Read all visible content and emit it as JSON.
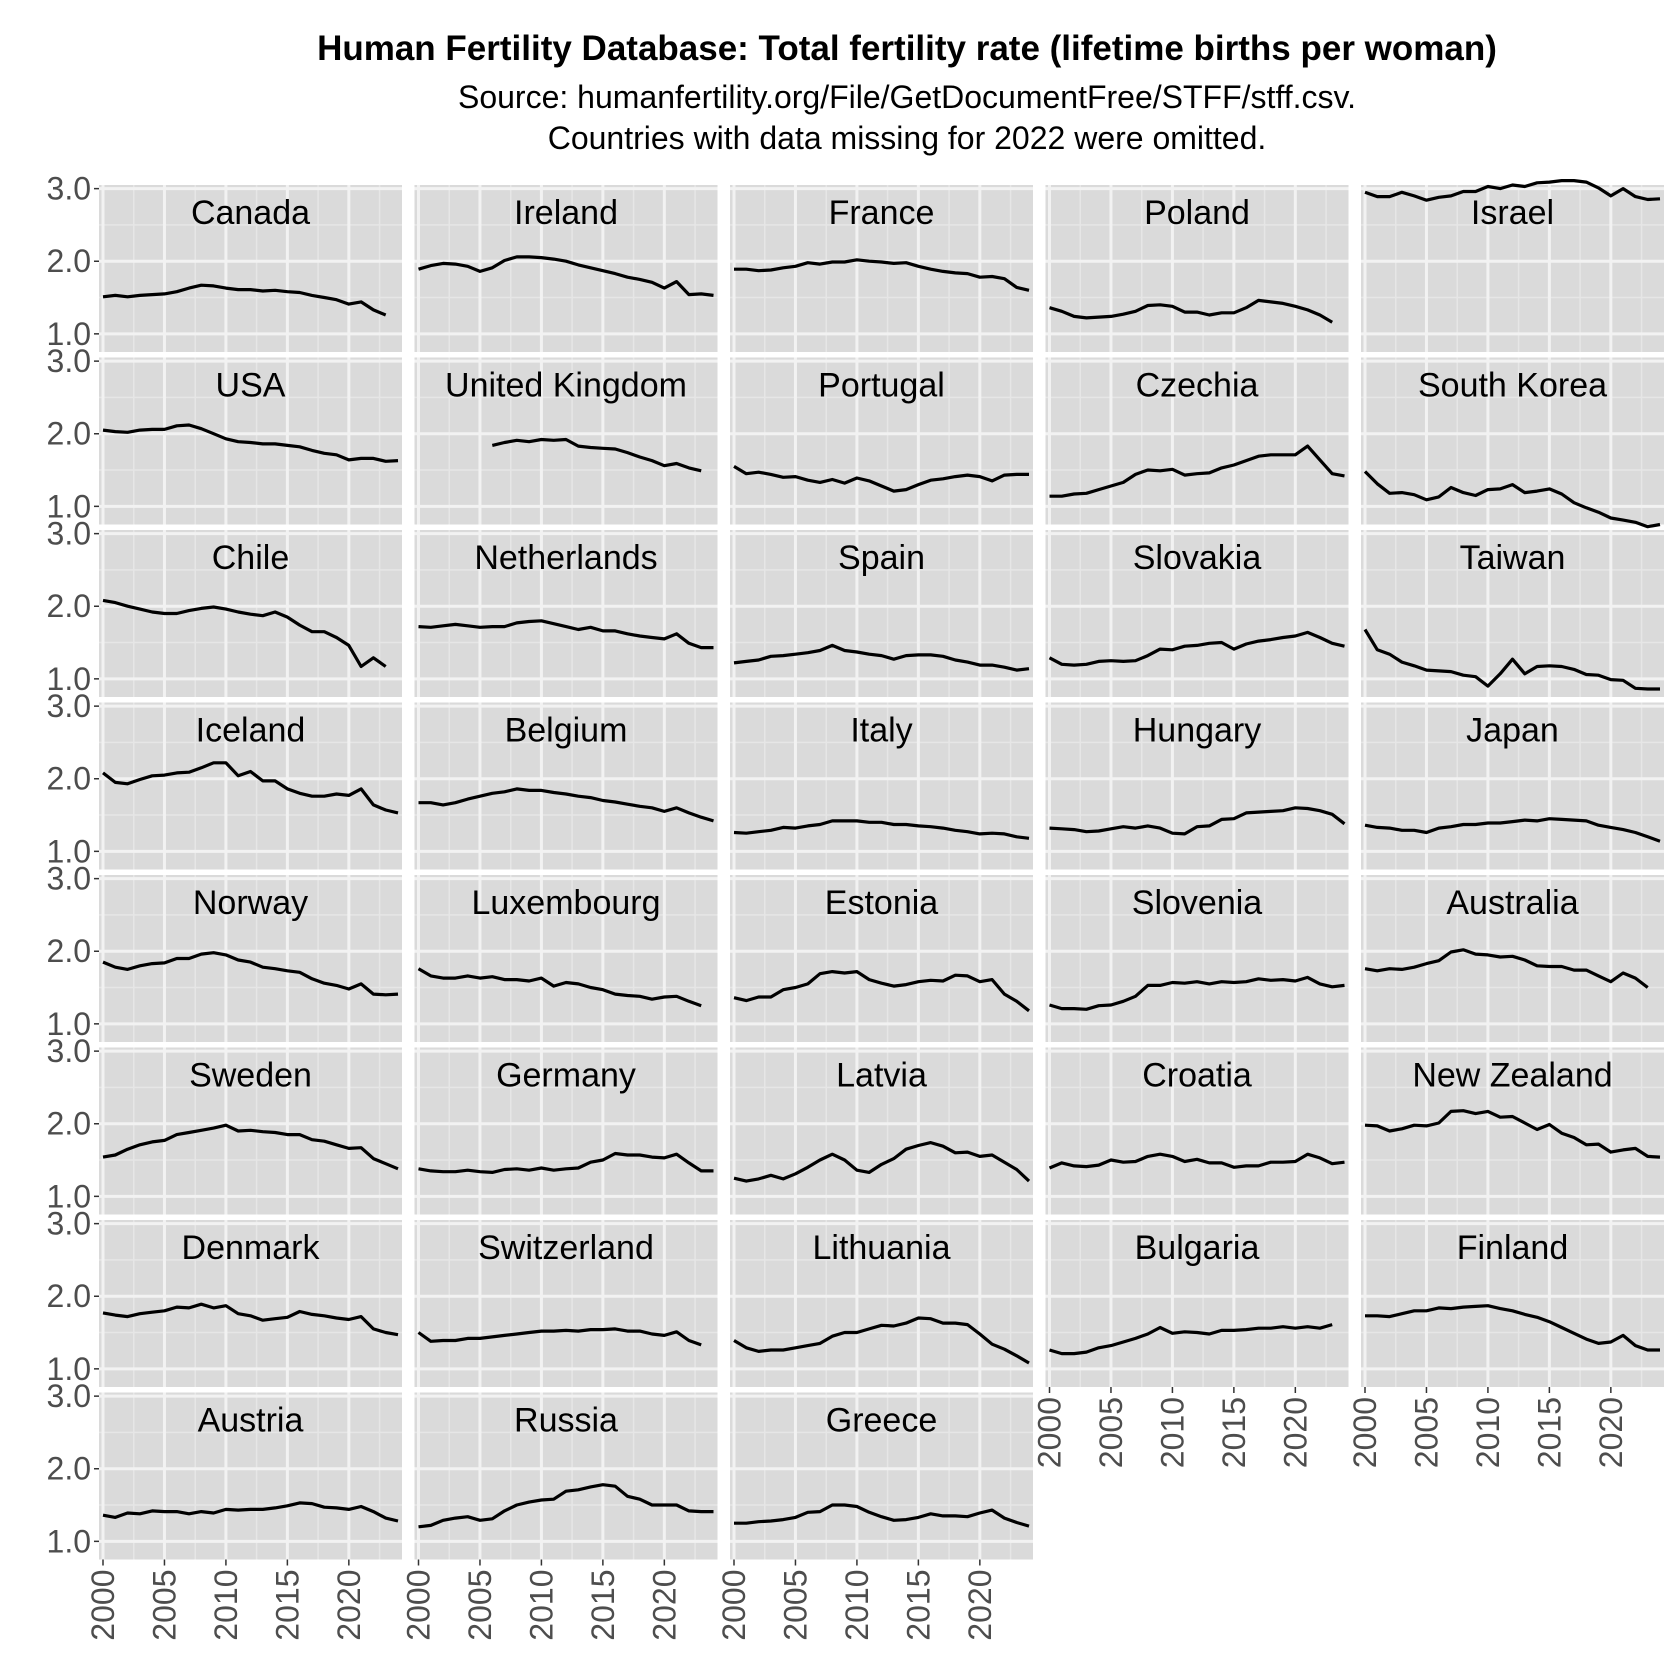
{
  "chart_data": {
    "type": "line",
    "title": "Human Fertility Database: Total fertility rate (lifetime births per woman)",
    "subtitle_lines": [
      "Source: humanfertility.org/File/GetDocumentFree/STFF/stff.csv.",
      "Countries with data missing for 2022 were omitted."
    ],
    "xlabel": "",
    "ylabel": "",
    "xlim": [
      2000,
      2024
    ],
    "ylim": [
      0.75,
      3.05
    ],
    "x_ticks": [
      2000,
      2005,
      2010,
      2015,
      2020
    ],
    "y_ticks": [
      1.0,
      2.0,
      3.0
    ],
    "y_tick_labels": [
      "1.0",
      "2.0",
      "3.0"
    ],
    "grid": true,
    "layout": "facet grid, 5 columns, free-standing panels",
    "line_color": "#000000",
    "panels": [
      {
        "country": "Canada",
        "x0": 2000,
        "values": [
          1.51,
          1.53,
          1.51,
          1.53,
          1.54,
          1.55,
          1.58,
          1.63,
          1.67,
          1.66,
          1.63,
          1.61,
          1.61,
          1.59,
          1.6,
          1.58,
          1.57,
          1.53,
          1.5,
          1.47,
          1.41,
          1.44,
          1.33,
          1.26
        ]
      },
      {
        "country": "Ireland",
        "x0": 2000,
        "values": [
          1.89,
          1.94,
          1.97,
          1.96,
          1.93,
          1.86,
          1.91,
          2.01,
          2.06,
          2.06,
          2.05,
          2.03,
          2.0,
          1.95,
          1.91,
          1.87,
          1.83,
          1.78,
          1.75,
          1.71,
          1.63,
          1.72,
          1.54,
          1.55,
          1.53
        ]
      },
      {
        "country": "France",
        "x0": 2000,
        "values": [
          1.89,
          1.89,
          1.87,
          1.88,
          1.91,
          1.93,
          1.98,
          1.96,
          1.99,
          1.99,
          2.02,
          2.0,
          1.99,
          1.97,
          1.98,
          1.93,
          1.89,
          1.86,
          1.84,
          1.83,
          1.78,
          1.79,
          1.76,
          1.64,
          1.6
        ]
      },
      {
        "country": "Poland",
        "x0": 2000,
        "values": [
          1.36,
          1.31,
          1.24,
          1.22,
          1.23,
          1.24,
          1.27,
          1.31,
          1.39,
          1.4,
          1.38,
          1.3,
          1.3,
          1.26,
          1.29,
          1.29,
          1.36,
          1.46,
          1.44,
          1.42,
          1.38,
          1.33,
          1.26,
          1.16
        ]
      },
      {
        "country": "Israel",
        "x0": 2000,
        "values": [
          2.95,
          2.89,
          2.89,
          2.95,
          2.9,
          2.84,
          2.88,
          2.9,
          2.96,
          2.96,
          3.03,
          3.0,
          3.05,
          3.03,
          3.08,
          3.09,
          3.11,
          3.11,
          3.09,
          3.01,
          2.9,
          3.0,
          2.89,
          2.85,
          2.86
        ]
      },
      {
        "country": "USA",
        "x0": 2000,
        "values": [
          2.05,
          2.03,
          2.02,
          2.05,
          2.06,
          2.06,
          2.11,
          2.12,
          2.07,
          2.0,
          1.93,
          1.89,
          1.88,
          1.86,
          1.86,
          1.84,
          1.82,
          1.77,
          1.73,
          1.71,
          1.64,
          1.66,
          1.66,
          1.62,
          1.63
        ]
      },
      {
        "country": "United Kingdom",
        "x0": 2000,
        "values": [
          null,
          null,
          null,
          null,
          null,
          null,
          1.84,
          1.88,
          1.91,
          1.89,
          1.92,
          1.91,
          1.92,
          1.83,
          1.81,
          1.8,
          1.79,
          1.74,
          1.68,
          1.63,
          1.56,
          1.59,
          1.53,
          1.49
        ]
      },
      {
        "country": "Portugal",
        "x0": 2000,
        "values": [
          1.55,
          1.45,
          1.47,
          1.44,
          1.4,
          1.41,
          1.36,
          1.33,
          1.37,
          1.32,
          1.39,
          1.35,
          1.28,
          1.21,
          1.23,
          1.3,
          1.36,
          1.38,
          1.41,
          1.43,
          1.41,
          1.35,
          1.43,
          1.44,
          1.44
        ]
      },
      {
        "country": "Czechia",
        "x0": 2000,
        "values": [
          1.14,
          1.14,
          1.17,
          1.18,
          1.23,
          1.28,
          1.33,
          1.44,
          1.5,
          1.49,
          1.51,
          1.43,
          1.45,
          1.46,
          1.53,
          1.57,
          1.63,
          1.69,
          1.71,
          1.71,
          1.71,
          1.83,
          1.64,
          1.45,
          1.42
        ]
      },
      {
        "country": "South Korea",
        "x0": 2000,
        "values": [
          1.48,
          1.31,
          1.18,
          1.19,
          1.16,
          1.09,
          1.13,
          1.26,
          1.19,
          1.15,
          1.23,
          1.24,
          1.3,
          1.19,
          1.21,
          1.24,
          1.17,
          1.05,
          0.98,
          0.92,
          0.84,
          0.81,
          0.78,
          0.72,
          0.75
        ]
      },
      {
        "country": "Chile",
        "x0": 2000,
        "values": [
          2.08,
          2.05,
          2.0,
          1.96,
          1.92,
          1.9,
          1.9,
          1.94,
          1.97,
          1.99,
          1.96,
          1.92,
          1.89,
          1.87,
          1.92,
          1.85,
          1.74,
          1.65,
          1.65,
          1.57,
          1.46,
          1.17,
          1.29,
          1.17
        ]
      },
      {
        "country": "Netherlands",
        "x0": 2000,
        "values": [
          1.72,
          1.71,
          1.73,
          1.75,
          1.73,
          1.71,
          1.72,
          1.72,
          1.77,
          1.79,
          1.8,
          1.76,
          1.72,
          1.68,
          1.71,
          1.66,
          1.66,
          1.62,
          1.59,
          1.57,
          1.55,
          1.62,
          1.49,
          1.43,
          1.43
        ]
      },
      {
        "country": "Spain",
        "x0": 2000,
        "values": [
          1.22,
          1.24,
          1.26,
          1.31,
          1.32,
          1.34,
          1.36,
          1.39,
          1.46,
          1.39,
          1.37,
          1.34,
          1.32,
          1.27,
          1.32,
          1.33,
          1.33,
          1.31,
          1.26,
          1.23,
          1.19,
          1.19,
          1.16,
          1.12,
          1.14
        ]
      },
      {
        "country": "Slovakia",
        "x0": 2000,
        "values": [
          1.29,
          1.2,
          1.19,
          1.2,
          1.24,
          1.25,
          1.24,
          1.25,
          1.32,
          1.41,
          1.4,
          1.45,
          1.46,
          1.49,
          1.5,
          1.41,
          1.48,
          1.52,
          1.54,
          1.57,
          1.59,
          1.64,
          1.57,
          1.49,
          1.45
        ]
      },
      {
        "country": "Taiwan",
        "x0": 2000,
        "values": [
          1.68,
          1.4,
          1.34,
          1.23,
          1.18,
          1.12,
          1.11,
          1.1,
          1.05,
          1.03,
          0.9,
          1.07,
          1.27,
          1.07,
          1.17,
          1.18,
          1.17,
          1.13,
          1.06,
          1.05,
          0.99,
          0.98,
          0.87,
          0.86,
          0.86
        ]
      },
      {
        "country": "Iceland",
        "x0": 2000,
        "values": [
          2.08,
          1.95,
          1.93,
          1.99,
          2.04,
          2.05,
          2.08,
          2.09,
          2.15,
          2.22,
          2.22,
          2.04,
          2.1,
          1.97,
          1.97,
          1.86,
          1.8,
          1.76,
          1.76,
          1.79,
          1.77,
          1.86,
          1.64,
          1.57,
          1.53
        ]
      },
      {
        "country": "Belgium",
        "x0": 2000,
        "values": [
          1.67,
          1.67,
          1.64,
          1.67,
          1.72,
          1.76,
          1.8,
          1.82,
          1.86,
          1.84,
          1.84,
          1.81,
          1.79,
          1.76,
          1.74,
          1.7,
          1.68,
          1.65,
          1.62,
          1.6,
          1.55,
          1.6,
          1.53,
          1.47,
          1.42
        ]
      },
      {
        "country": "Italy",
        "x0": 2000,
        "values": [
          1.26,
          1.25,
          1.27,
          1.29,
          1.33,
          1.32,
          1.35,
          1.37,
          1.42,
          1.42,
          1.42,
          1.4,
          1.4,
          1.37,
          1.37,
          1.35,
          1.34,
          1.32,
          1.29,
          1.27,
          1.24,
          1.25,
          1.24,
          1.2,
          1.18
        ]
      },
      {
        "country": "Hungary",
        "x0": 2000,
        "values": [
          1.32,
          1.31,
          1.3,
          1.27,
          1.28,
          1.31,
          1.34,
          1.32,
          1.35,
          1.32,
          1.25,
          1.24,
          1.34,
          1.35,
          1.44,
          1.45,
          1.53,
          1.54,
          1.55,
          1.56,
          1.6,
          1.59,
          1.56,
          1.51,
          1.38
        ]
      },
      {
        "country": "Japan",
        "x0": 2000,
        "values": [
          1.36,
          1.33,
          1.32,
          1.29,
          1.29,
          1.26,
          1.32,
          1.34,
          1.37,
          1.37,
          1.39,
          1.39,
          1.41,
          1.43,
          1.42,
          1.45,
          1.44,
          1.43,
          1.42,
          1.36,
          1.33,
          1.3,
          1.26,
          1.2,
          1.14
        ]
      },
      {
        "country": "Norway",
        "x0": 2000,
        "values": [
          1.85,
          1.78,
          1.75,
          1.8,
          1.83,
          1.84,
          1.9,
          1.9,
          1.96,
          1.98,
          1.95,
          1.88,
          1.85,
          1.78,
          1.76,
          1.73,
          1.71,
          1.62,
          1.56,
          1.53,
          1.48,
          1.55,
          1.41,
          1.4,
          1.41
        ]
      },
      {
        "country": "Luxembourg",
        "x0": 2000,
        "values": [
          1.76,
          1.66,
          1.63,
          1.63,
          1.66,
          1.63,
          1.65,
          1.61,
          1.61,
          1.59,
          1.63,
          1.52,
          1.57,
          1.55,
          1.5,
          1.47,
          1.41,
          1.39,
          1.38,
          1.34,
          1.37,
          1.38,
          1.31,
          1.25
        ]
      },
      {
        "country": "Estonia",
        "x0": 2000,
        "values": [
          1.36,
          1.32,
          1.37,
          1.37,
          1.47,
          1.5,
          1.55,
          1.69,
          1.72,
          1.7,
          1.72,
          1.61,
          1.56,
          1.52,
          1.54,
          1.58,
          1.6,
          1.59,
          1.67,
          1.66,
          1.58,
          1.61,
          1.41,
          1.31,
          1.18
        ]
      },
      {
        "country": "Slovenia",
        "x0": 2000,
        "values": [
          1.26,
          1.21,
          1.21,
          1.2,
          1.25,
          1.26,
          1.31,
          1.38,
          1.53,
          1.53,
          1.57,
          1.56,
          1.58,
          1.55,
          1.58,
          1.57,
          1.58,
          1.62,
          1.6,
          1.61,
          1.59,
          1.64,
          1.55,
          1.51,
          1.53
        ]
      },
      {
        "country": "Australia",
        "x0": 2000,
        "values": [
          1.76,
          1.73,
          1.76,
          1.75,
          1.78,
          1.83,
          1.87,
          1.99,
          2.02,
          1.96,
          1.95,
          1.92,
          1.93,
          1.88,
          1.8,
          1.79,
          1.79,
          1.74,
          1.74,
          1.66,
          1.58,
          1.7,
          1.63,
          1.5
        ]
      },
      {
        "country": "Sweden",
        "x0": 2000,
        "values": [
          1.54,
          1.57,
          1.65,
          1.71,
          1.75,
          1.77,
          1.85,
          1.88,
          1.91,
          1.94,
          1.98,
          1.9,
          1.91,
          1.89,
          1.88,
          1.85,
          1.85,
          1.78,
          1.76,
          1.71,
          1.66,
          1.67,
          1.52,
          1.45,
          1.38
        ]
      },
      {
        "country": "Germany",
        "x0": 2000,
        "values": [
          1.38,
          1.35,
          1.34,
          1.34,
          1.36,
          1.34,
          1.33,
          1.37,
          1.38,
          1.36,
          1.39,
          1.36,
          1.38,
          1.39,
          1.47,
          1.5,
          1.59,
          1.57,
          1.57,
          1.54,
          1.53,
          1.58,
          1.46,
          1.35,
          1.35
        ]
      },
      {
        "country": "Latvia",
        "x0": 2000,
        "values": [
          1.25,
          1.21,
          1.24,
          1.29,
          1.24,
          1.31,
          1.4,
          1.5,
          1.58,
          1.5,
          1.36,
          1.33,
          1.44,
          1.52,
          1.65,
          1.7,
          1.74,
          1.69,
          1.6,
          1.61,
          1.55,
          1.57,
          1.47,
          1.37,
          1.21
        ]
      },
      {
        "country": "Croatia",
        "x0": 2000,
        "values": [
          1.39,
          1.46,
          1.42,
          1.41,
          1.43,
          1.5,
          1.47,
          1.48,
          1.55,
          1.58,
          1.55,
          1.48,
          1.51,
          1.46,
          1.46,
          1.4,
          1.42,
          1.42,
          1.47,
          1.47,
          1.48,
          1.58,
          1.53,
          1.45,
          1.47
        ]
      },
      {
        "country": "New Zealand",
        "x0": 2000,
        "values": [
          1.98,
          1.97,
          1.9,
          1.93,
          1.98,
          1.97,
          2.01,
          2.17,
          2.18,
          2.14,
          2.17,
          2.09,
          2.1,
          2.01,
          1.92,
          1.99,
          1.87,
          1.81,
          1.71,
          1.72,
          1.61,
          1.64,
          1.66,
          1.55,
          1.54
        ]
      },
      {
        "country": "Denmark",
        "x0": 2000,
        "values": [
          1.77,
          1.74,
          1.72,
          1.76,
          1.78,
          1.8,
          1.85,
          1.84,
          1.89,
          1.84,
          1.87,
          1.76,
          1.73,
          1.67,
          1.69,
          1.71,
          1.79,
          1.75,
          1.73,
          1.7,
          1.68,
          1.72,
          1.55,
          1.5,
          1.47
        ]
      },
      {
        "country": "Switzerland",
        "x0": 2000,
        "values": [
          1.5,
          1.38,
          1.39,
          1.39,
          1.42,
          1.42,
          1.44,
          1.46,
          1.48,
          1.5,
          1.52,
          1.52,
          1.53,
          1.52,
          1.54,
          1.54,
          1.55,
          1.52,
          1.52,
          1.48,
          1.46,
          1.51,
          1.39,
          1.33
        ]
      },
      {
        "country": "Lithuania",
        "x0": 2000,
        "values": [
          1.39,
          1.29,
          1.24,
          1.26,
          1.26,
          1.29,
          1.32,
          1.35,
          1.45,
          1.5,
          1.5,
          1.55,
          1.6,
          1.59,
          1.63,
          1.7,
          1.69,
          1.63,
          1.63,
          1.61,
          1.48,
          1.34,
          1.27,
          1.18,
          1.08
        ]
      },
      {
        "country": "Bulgaria",
        "x0": 2000,
        "values": [
          1.26,
          1.21,
          1.21,
          1.23,
          1.29,
          1.32,
          1.37,
          1.42,
          1.48,
          1.57,
          1.49,
          1.51,
          1.5,
          1.48,
          1.53,
          1.53,
          1.54,
          1.56,
          1.56,
          1.58,
          1.56,
          1.58,
          1.56,
          1.61
        ]
      },
      {
        "country": "Finland",
        "x0": 2000,
        "values": [
          1.73,
          1.73,
          1.72,
          1.76,
          1.8,
          1.8,
          1.84,
          1.83,
          1.85,
          1.86,
          1.87,
          1.83,
          1.8,
          1.75,
          1.71,
          1.65,
          1.57,
          1.49,
          1.41,
          1.35,
          1.37,
          1.46,
          1.32,
          1.26,
          1.26
        ]
      },
      {
        "country": "Austria",
        "x0": 2000,
        "values": [
          1.36,
          1.33,
          1.39,
          1.38,
          1.42,
          1.41,
          1.41,
          1.38,
          1.41,
          1.39,
          1.44,
          1.43,
          1.44,
          1.44,
          1.46,
          1.49,
          1.53,
          1.52,
          1.47,
          1.46,
          1.44,
          1.48,
          1.41,
          1.32,
          1.28
        ]
      },
      {
        "country": "Russia",
        "x0": 2000,
        "values": [
          1.2,
          1.22,
          1.29,
          1.32,
          1.34,
          1.29,
          1.31,
          1.42,
          1.5,
          1.54,
          1.57,
          1.58,
          1.69,
          1.71,
          1.75,
          1.78,
          1.76,
          1.62,
          1.58,
          1.5,
          1.5,
          1.5,
          1.42,
          1.41,
          1.41
        ]
      },
      {
        "country": "Greece",
        "x0": 2000,
        "values": [
          1.25,
          1.25,
          1.27,
          1.28,
          1.3,
          1.33,
          1.4,
          1.41,
          1.5,
          1.5,
          1.48,
          1.4,
          1.34,
          1.29,
          1.3,
          1.33,
          1.38,
          1.35,
          1.35,
          1.34,
          1.39,
          1.43,
          1.32,
          1.26,
          1.21
        ]
      }
    ]
  }
}
